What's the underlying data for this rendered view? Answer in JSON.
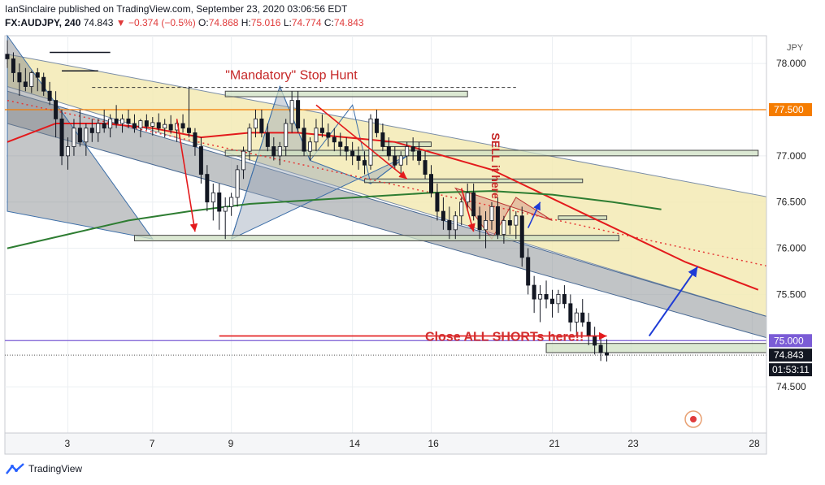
{
  "header": {
    "line1": "IanSinclaire published on TradingView.com, September 23, 2020 03:06:56 EDT",
    "symbol": "FX:AUDJPY, 240",
    "last": "74.843",
    "change": "▼ −0.374 (−0.5%)",
    "o_label": "O:",
    "o": "74.868",
    "h_label": "H:",
    "h": "75.016",
    "l_label": "L:",
    "l": "74.774",
    "c_label": "C:",
    "c": "74.843"
  },
  "footer": {
    "brand": "TradingView"
  },
  "colors": {
    "up": "#ffffff",
    "down": "#131722",
    "accent_red": "#e03b3b",
    "ma_red": "#e31a1c",
    "ma_green": "#2e7d32",
    "orange_line": "#f57c00",
    "purple_line": "#7b5cd6",
    "triangle_fill": "#f3eab4",
    "channel_fill": "#8e9397"
  },
  "chart_data": {
    "type": "candlestick",
    "title": "FX:AUDJPY, 240",
    "currency_label": "JPY",
    "y_ticks": [
      "78.000",
      "77.500",
      "77.000",
      "76.500",
      "76.000",
      "75.500",
      "75.000",
      "74.500"
    ],
    "ylim": [
      74.0,
      78.3
    ],
    "x_ticks": [
      {
        "label": "3",
        "bar": 10
      },
      {
        "label": "7",
        "bar": 24
      },
      {
        "label": "9",
        "bar": 37
      },
      {
        "label": "14",
        "bar": 57
      },
      {
        "label": "16",
        "bar": 70
      },
      {
        "label": "21",
        "bar": 90
      },
      {
        "label": "23",
        "bar": 103
      },
      {
        "label": "28",
        "bar": 123
      }
    ],
    "price_badges": [
      {
        "label": "77.500",
        "value": 77.5,
        "color": "#f57c00"
      },
      {
        "label": "75.000",
        "value": 75.0,
        "color": "#7b5cd6"
      },
      {
        "label": "74.843",
        "value": 74.843,
        "color": "#131722"
      }
    ],
    "countdown": "01:53:11",
    "annotations": [
      {
        "text": "\"Mandatory\" Stop Hunt",
        "color": "#c62828"
      },
      {
        "text": "SELL it here",
        "color": "#c62828"
      },
      {
        "text": "Close ALL SHORTs here!!",
        "color": "#d32f2f"
      }
    ],
    "candles": [
      [
        78.1,
        78.25,
        77.95,
        78.05
      ],
      [
        78.05,
        78.12,
        77.8,
        77.9
      ],
      [
        77.9,
        78.0,
        77.65,
        77.8
      ],
      [
        77.8,
        77.95,
        77.7,
        77.75
      ],
      [
        77.75,
        77.92,
        77.68,
        77.9
      ],
      [
        77.9,
        77.95,
        77.7,
        77.85
      ],
      [
        77.85,
        77.9,
        77.65,
        77.7
      ],
      [
        77.7,
        77.8,
        77.55,
        77.6
      ],
      [
        77.6,
        77.7,
        77.2,
        77.4
      ],
      [
        77.4,
        77.5,
        76.9,
        77.0
      ],
      [
        77.0,
        77.2,
        76.85,
        77.1
      ],
      [
        77.1,
        77.4,
        77.0,
        77.3
      ],
      [
        77.3,
        77.5,
        77.1,
        77.15
      ],
      [
        77.15,
        77.35,
        77.0,
        77.3
      ],
      [
        77.3,
        77.4,
        77.15,
        77.25
      ],
      [
        77.25,
        77.4,
        77.15,
        77.35
      ],
      [
        77.35,
        77.5,
        77.25,
        77.3
      ],
      [
        77.3,
        77.45,
        77.2,
        77.4
      ],
      [
        77.4,
        77.55,
        77.3,
        77.35
      ],
      [
        77.35,
        77.45,
        77.25,
        77.4
      ],
      [
        77.4,
        77.5,
        77.3,
        77.35
      ],
      [
        77.35,
        77.45,
        77.25,
        77.3
      ],
      [
        77.3,
        77.4,
        77.2,
        77.38
      ],
      [
        77.38,
        77.45,
        77.28,
        77.32
      ],
      [
        77.32,
        77.42,
        77.22,
        77.36
      ],
      [
        77.36,
        77.46,
        77.26,
        77.3
      ],
      [
        77.3,
        77.4,
        77.2,
        77.34
      ],
      [
        77.34,
        77.44,
        77.24,
        77.28
      ],
      [
        77.28,
        77.4,
        77.15,
        77.35
      ],
      [
        77.35,
        77.45,
        77.25,
        77.3
      ],
      [
        77.3,
        77.75,
        77.2,
        77.25
      ],
      [
        77.25,
        77.3,
        77.0,
        77.1
      ],
      [
        77.1,
        77.2,
        76.7,
        76.8
      ],
      [
        76.8,
        76.9,
        76.4,
        76.5
      ],
      [
        76.5,
        76.7,
        76.3,
        76.6
      ],
      [
        76.6,
        76.7,
        76.2,
        76.4
      ],
      [
        76.4,
        76.55,
        76.1,
        76.45
      ],
      [
        76.45,
        76.6,
        76.35,
        76.55
      ],
      [
        76.55,
        76.9,
        76.45,
        76.85
      ],
      [
        76.85,
        77.1,
        76.75,
        77.05
      ],
      [
        77.05,
        77.35,
        76.95,
        77.3
      ],
      [
        77.3,
        77.5,
        77.2,
        77.4
      ],
      [
        77.4,
        77.5,
        77.2,
        77.25
      ],
      [
        77.25,
        77.35,
        77.05,
        77.1
      ],
      [
        77.1,
        77.2,
        76.95,
        77.0
      ],
      [
        77.0,
        77.15,
        76.9,
        77.1
      ],
      [
        77.1,
        77.4,
        77.0,
        77.35
      ],
      [
        77.35,
        77.7,
        77.25,
        77.6
      ],
      [
        77.6,
        77.7,
        77.25,
        77.3
      ],
      [
        77.3,
        77.4,
        77.0,
        77.05
      ],
      [
        77.05,
        77.2,
        76.95,
        77.15
      ],
      [
        77.15,
        77.4,
        77.05,
        77.3
      ],
      [
        77.3,
        77.45,
        77.2,
        77.25
      ],
      [
        77.25,
        77.35,
        77.1,
        77.2
      ],
      [
        77.2,
        77.3,
        77.05,
        77.15
      ],
      [
        77.15,
        77.25,
        77.0,
        77.1
      ],
      [
        77.1,
        77.2,
        76.95,
        77.05
      ],
      [
        77.05,
        77.15,
        76.9,
        77.0
      ],
      [
        77.0,
        77.1,
        76.85,
        76.95
      ],
      [
        76.95,
        77.05,
        76.8,
        76.9
      ],
      [
        76.9,
        77.45,
        76.85,
        77.4
      ],
      [
        77.4,
        77.5,
        77.2,
        77.25
      ],
      [
        77.25,
        77.35,
        77.05,
        77.1
      ],
      [
        77.1,
        77.2,
        76.95,
        77.0
      ],
      [
        77.0,
        77.1,
        76.85,
        76.9
      ],
      [
        76.9,
        77.05,
        76.8,
        77.0
      ],
      [
        77.0,
        77.15,
        76.9,
        77.1
      ],
      [
        77.1,
        77.2,
        76.95,
        77.05
      ],
      [
        77.05,
        77.15,
        76.9,
        76.95
      ],
      [
        76.95,
        77.05,
        76.75,
        76.8
      ],
      [
        76.8,
        76.9,
        76.55,
        76.6
      ],
      [
        76.6,
        76.7,
        76.3,
        76.4
      ],
      [
        76.4,
        76.55,
        76.2,
        76.3
      ],
      [
        76.3,
        76.45,
        76.1,
        76.2
      ],
      [
        76.2,
        76.4,
        76.1,
        76.35
      ],
      [
        76.35,
        76.55,
        76.25,
        76.5
      ],
      [
        76.5,
        76.7,
        76.4,
        76.6
      ],
      [
        76.6,
        76.7,
        76.3,
        76.35
      ],
      [
        76.35,
        76.45,
        76.1,
        76.2
      ],
      [
        76.2,
        76.4,
        76.0,
        76.3
      ],
      [
        76.3,
        76.5,
        76.2,
        76.45
      ],
      [
        76.45,
        76.55,
        76.1,
        76.15
      ],
      [
        76.15,
        76.35,
        76.05,
        76.3
      ],
      [
        76.3,
        76.45,
        76.15,
        76.25
      ],
      [
        76.25,
        76.4,
        76.1,
        76.35
      ],
      [
        76.35,
        76.45,
        75.8,
        75.9
      ],
      [
        75.9,
        76.0,
        75.5,
        75.6
      ],
      [
        75.6,
        75.7,
        75.3,
        75.45
      ],
      [
        75.45,
        75.6,
        75.2,
        75.5
      ],
      [
        75.5,
        75.65,
        75.35,
        75.45
      ],
      [
        75.45,
        75.55,
        75.25,
        75.4
      ],
      [
        75.4,
        75.55,
        75.3,
        75.5
      ],
      [
        75.5,
        75.6,
        75.35,
        75.4
      ],
      [
        75.4,
        75.5,
        75.1,
        75.2
      ],
      [
        75.2,
        75.35,
        75.05,
        75.3
      ],
      [
        75.3,
        75.45,
        75.15,
        75.2
      ],
      [
        75.2,
        75.3,
        74.95,
        75.05
      ],
      [
        75.05,
        75.15,
        74.85,
        74.95
      ],
      [
        74.95,
        75.05,
        74.78,
        74.87
      ],
      [
        74.868,
        75.016,
        74.774,
        74.843
      ]
    ],
    "series": [
      {
        "name": "",
        "color": "#e31a1c",
        "points": [
          [
            0,
            77.15
          ],
          [
            8,
            77.35
          ],
          [
            16,
            77.35
          ],
          [
            24,
            77.3
          ],
          [
            32,
            77.2
          ],
          [
            40,
            77.25
          ],
          [
            48,
            77.25
          ],
          [
            56,
            77.2
          ],
          [
            64,
            77.15
          ],
          [
            72,
            77.0
          ],
          [
            80,
            76.85
          ],
          [
            88,
            76.6
          ],
          [
            96,
            76.35
          ],
          [
            104,
            76.1
          ],
          [
            112,
            75.85
          ],
          [
            124,
            75.55
          ]
        ]
      },
      {
        "name": "",
        "color": "#2e7d32",
        "points": [
          [
            0,
            76.0
          ],
          [
            10,
            76.15
          ],
          [
            20,
            76.3
          ],
          [
            30,
            76.4
          ],
          [
            40,
            76.48
          ],
          [
            50,
            76.52
          ],
          [
            60,
            76.56
          ],
          [
            70,
            76.6
          ],
          [
            80,
            76.62
          ],
          [
            90,
            76.58
          ],
          [
            100,
            76.5
          ],
          [
            108,
            76.42
          ]
        ]
      }
    ]
  }
}
